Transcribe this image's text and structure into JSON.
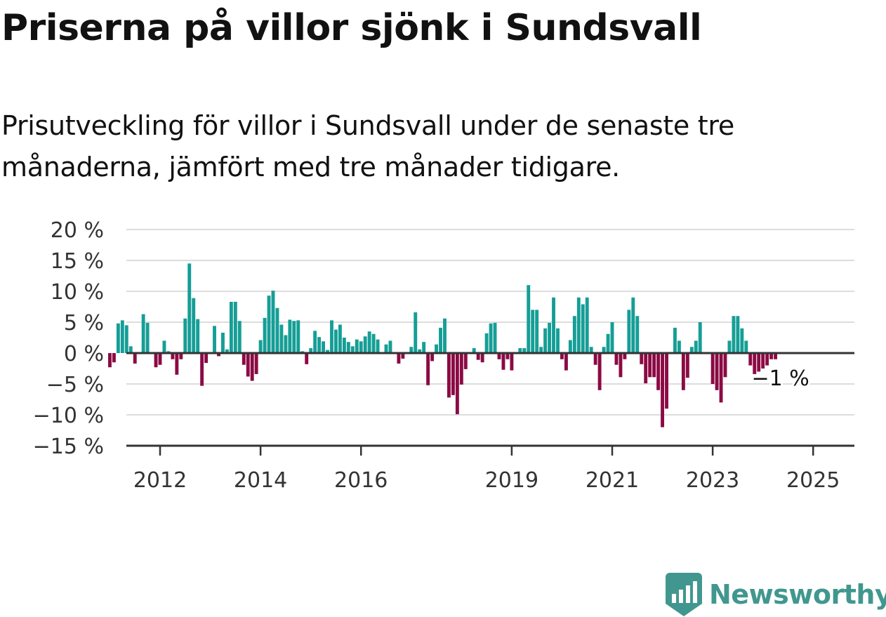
{
  "title": "Priserna på villor sjönk i Sundsvall",
  "subtitle": "Prisutveckling för villor i Sundsvall under de senaste tre månaderna, jämfört med tre månader tidigare.",
  "brand": "Newsworthy",
  "colors": {
    "positive": "#159e96",
    "negative": "#8b0a44",
    "grid": "#dddddd",
    "axis": "#333333",
    "brand": "#41978f"
  },
  "chart_data": {
    "type": "bar",
    "x_start": "2011-01",
    "x_step": "month",
    "values": [
      -2.3,
      -1.5,
      4.8,
      5.3,
      4.5,
      1.1,
      -1.7,
      0,
      6.3,
      4.9,
      0,
      -2.3,
      -1.9,
      2,
      0.3,
      -1,
      -3.5,
      -1,
      5.6,
      14.5,
      8.9,
      5.5,
      -5.3,
      -1.6,
      0,
      4.4,
      -0.5,
      3.3,
      0.6,
      8.3,
      8.3,
      5.2,
      -1.9,
      -3.8,
      -4.5,
      -3.4,
      2.1,
      5.7,
      9.3,
      10.1,
      7.3,
      4.6,
      2.9,
      5.4,
      5.2,
      5.3,
      0.3,
      -1.8,
      0.8,
      3.6,
      2.6,
      1.9,
      0.5,
      5.3,
      3.8,
      4.6,
      2.5,
      1.8,
      1.1,
      2.2,
      1.9,
      2.7,
      3.5,
      3.1,
      2.2,
      0,
      1.4,
      2,
      0,
      -1.7,
      -0.9,
      0,
      1,
      6.6,
      0.6,
      1.8,
      -5.2,
      -1.3,
      1.4,
      4.1,
      5.6,
      -7.2,
      -6.8,
      -9.9,
      -5.1,
      -2.6,
      0,
      0.8,
      -1.1,
      -1.5,
      3.2,
      4.8,
      4.9,
      -1,
      -2.7,
      -1,
      -2.8,
      0,
      0.8,
      0.8,
      11,
      7,
      7,
      1,
      4,
      4.9,
      9,
      4,
      -1,
      -2.8,
      2.1,
      6,
      9,
      7.9,
      9,
      1,
      -1.9,
      -6,
      1,
      3.1,
      5,
      -1.9,
      -3.9,
      -1,
      7,
      9,
      6,
      -1.8,
      -4.9,
      -3.9,
      -3.9,
      -6,
      -12,
      -9,
      0,
      4.1,
      2,
      -6,
      -4,
      1,
      2,
      5,
      0,
      0,
      -5,
      -6,
      -8,
      -3.9,
      2,
      6,
      6,
      4,
      2,
      -2,
      -3.4,
      -3,
      -2.5,
      -2,
      -1,
      -1
    ],
    "ylim": [
      -15,
      20
    ],
    "y_ticks": [
      20,
      15,
      10,
      5,
      0,
      -5,
      -10,
      -15
    ],
    "y_tick_labels": [
      "20 %",
      "15 %",
      "10 %",
      "5 %",
      "0 %",
      "−5 %",
      "−10 %",
      "−15 %"
    ],
    "x_ticks": [
      {
        "date": "2012-01",
        "label": "2012"
      },
      {
        "date": "2014-01",
        "label": "2014"
      },
      {
        "date": "2016-01",
        "label": "2016"
      },
      {
        "date": "2019-01",
        "label": "2019"
      },
      {
        "date": "2021-01",
        "label": "2021"
      },
      {
        "date": "2023-01",
        "label": "2023"
      },
      {
        "date": "2025-01",
        "label": "2025"
      }
    ],
    "annotation": "−1 %",
    "grid": true
  }
}
